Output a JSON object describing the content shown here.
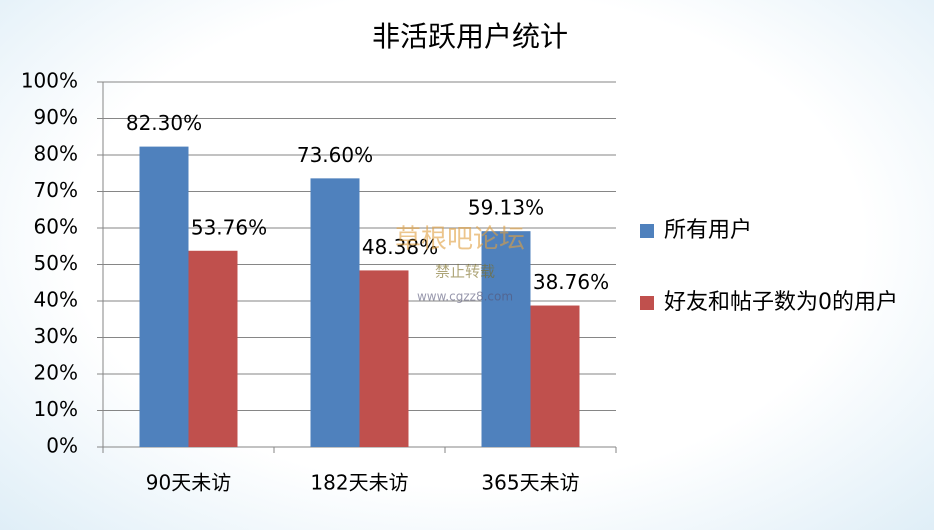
{
  "chart_data": {
    "type": "bar",
    "title": "非活跃用户统计",
    "categories": [
      "90天未访",
      "182天未访",
      "365天未访"
    ],
    "series": [
      {
        "name": "所有用户",
        "color": "#4f81bd",
        "values": [
          82.3,
          73.6,
          59.13
        ],
        "value_labels": [
          "82.30%",
          "73.60%",
          "59.13%"
        ]
      },
      {
        "name": "好友和帖子数为0的用户",
        "color": "#c0504d",
        "values": [
          53.76,
          48.38,
          38.76
        ],
        "value_labels": [
          "53.76%",
          "48.38%",
          "38.76%"
        ]
      }
    ],
    "ylim": [
      0,
      100
    ],
    "yticks": [
      {
        "value": 0,
        "label": "0%"
      },
      {
        "value": 10,
        "label": "10%"
      },
      {
        "value": 20,
        "label": "20%"
      },
      {
        "value": 30,
        "label": "30%"
      },
      {
        "value": 40,
        "label": "40%"
      },
      {
        "value": 50,
        "label": "50%"
      },
      {
        "value": 60,
        "label": "60%"
      },
      {
        "value": 70,
        "label": "70%"
      },
      {
        "value": 80,
        "label": "80%"
      },
      {
        "value": 90,
        "label": "90%"
      },
      {
        "value": 100,
        "label": "100%"
      }
    ],
    "grid": true,
    "legend": "right",
    "watermark": [
      "草根吧论坛",
      "禁止转载",
      "www.cgzz8.com"
    ]
  }
}
